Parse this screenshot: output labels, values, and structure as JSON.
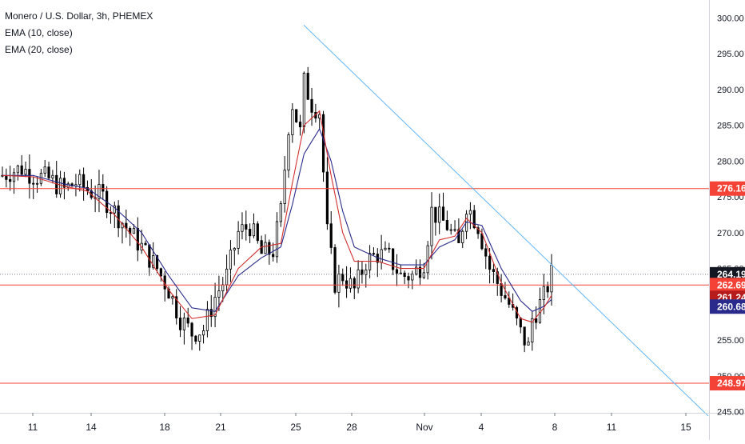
{
  "legend": {
    "symbol": "Monero / U.S. Dollar, 3h, PHEMEX",
    "ema10": "EMA (10, close)",
    "ema20": "EMA (20, close)"
  },
  "colors": {
    "candle": "#000000",
    "ema10": "#d32f2f",
    "ema20": "#2a2a8c",
    "trendline": "#64b5f6",
    "hline": "#f44336",
    "price_tag": "#131722",
    "ema10_tag": "#b71c1c",
    "ema20_tag": "#2a2a8c"
  },
  "chart_data": {
    "type": "candlestick",
    "title": "Monero / U.S. Dollar, 3h, PHEMEX",
    "x_ticks": [
      "11",
      "14",
      "18",
      "21",
      "25",
      "28",
      "Nov",
      "4",
      "8",
      "11",
      "15"
    ],
    "y_ticks": [
      "245.00",
      "250.00",
      "255.00",
      "260.00",
      "265.00",
      "270.00",
      "275.00",
      "280.00",
      "285.00",
      "290.00",
      "295.00",
      "300.00"
    ],
    "ylim": [
      243.5,
      302.5
    ],
    "price_line": 264.19,
    "horizontal_levels": [
      276.16,
      262.69,
      248.97
    ],
    "trendline": {
      "start": {
        "x": "25",
        "y": 299.0
      },
      "end": {
        "x": "after 15",
        "y": 244.4
      }
    },
    "tags": [
      {
        "label": "276.16",
        "kind": "level"
      },
      {
        "label": "264.19",
        "kind": "price"
      },
      {
        "label": "262.69",
        "kind": "level"
      },
      {
        "label": "261.24",
        "kind": "ema10"
      },
      {
        "label": "260.68",
        "kind": "ema20"
      },
      {
        "label": "248.97",
        "kind": "level"
      }
    ],
    "close_path": [
      [
        0,
        278
      ],
      [
        2,
        278.5
      ],
      [
        5,
        279
      ],
      [
        8,
        278
      ],
      [
        12,
        277.5
      ],
      [
        16,
        276
      ],
      [
        19,
        277
      ],
      [
        22,
        276
      ],
      [
        26,
        275
      ],
      [
        29,
        273
      ],
      [
        33,
        270
      ],
      [
        36,
        268
      ],
      [
        40,
        265
      ],
      [
        43,
        262
      ],
      [
        46,
        258
      ],
      [
        49,
        256
      ],
      [
        52,
        256.5
      ],
      [
        55,
        261
      ],
      [
        58,
        264
      ],
      [
        61,
        270
      ],
      [
        64,
        271
      ],
      [
        67,
        267
      ],
      [
        70,
        267.5
      ],
      [
        72,
        273
      ],
      [
        74,
        285
      ],
      [
        75,
        288
      ],
      [
        77,
        284
      ],
      [
        78,
        291
      ],
      [
        80,
        288
      ],
      [
        82,
        287
      ],
      [
        84,
        270
      ],
      [
        86,
        263
      ],
      [
        88,
        264
      ],
      [
        91,
        262
      ],
      [
        94,
        266
      ],
      [
        97,
        267
      ],
      [
        100,
        266.5
      ],
      [
        103,
        264
      ],
      [
        106,
        264
      ],
      [
        109,
        266
      ],
      [
        111,
        273
      ],
      [
        113,
        272
      ],
      [
        115,
        271
      ],
      [
        118,
        268
      ],
      [
        120,
        274
      ],
      [
        123,
        271
      ],
      [
        126,
        265
      ],
      [
        129,
        262
      ],
      [
        131,
        260
      ],
      [
        134,
        256
      ],
      [
        136,
        254
      ],
      [
        137,
        258
      ],
      [
        140,
        261
      ],
      [
        142,
        264.19
      ]
    ],
    "ema10": [
      [
        0,
        278
      ],
      [
        8,
        277.8
      ],
      [
        16,
        276.5
      ],
      [
        22,
        275.8
      ],
      [
        29,
        272.5
      ],
      [
        36,
        268
      ],
      [
        43,
        262
      ],
      [
        49,
        258
      ],
      [
        55,
        258.5
      ],
      [
        61,
        265
      ],
      [
        67,
        268
      ],
      [
        72,
        268.5
      ],
      [
        75,
        277
      ],
      [
        78,
        285
      ],
      [
        82,
        287
      ],
      [
        85,
        278
      ],
      [
        88,
        270
      ],
      [
        91,
        266
      ],
      [
        97,
        266
      ],
      [
        103,
        265
      ],
      [
        109,
        265
      ],
      [
        113,
        269
      ],
      [
        117,
        269.5
      ],
      [
        120,
        272
      ],
      [
        124,
        270
      ],
      [
        129,
        263
      ],
      [
        134,
        258
      ],
      [
        137,
        257.5
      ],
      [
        140,
        259.5
      ],
      [
        142,
        261.24
      ]
    ],
    "ema20": [
      [
        0,
        278
      ],
      [
        8,
        278
      ],
      [
        16,
        276.8
      ],
      [
        22,
        276.2
      ],
      [
        29,
        273.5
      ],
      [
        36,
        270
      ],
      [
        43,
        264
      ],
      [
        49,
        259.5
      ],
      [
        55,
        259
      ],
      [
        61,
        264
      ],
      [
        67,
        266.5
      ],
      [
        72,
        268
      ],
      [
        75,
        274
      ],
      [
        78,
        281
      ],
      [
        82,
        284.5
      ],
      [
        85,
        280
      ],
      [
        88,
        273
      ],
      [
        91,
        268
      ],
      [
        97,
        266.5
      ],
      [
        103,
        265.5
      ],
      [
        109,
        265.5
      ],
      [
        113,
        268
      ],
      [
        117,
        269
      ],
      [
        120,
        271.5
      ],
      [
        124,
        271
      ],
      [
        129,
        265
      ],
      [
        134,
        260.5
      ],
      [
        137,
        259
      ],
      [
        140,
        259.7
      ],
      [
        142,
        260.68
      ]
    ]
  }
}
